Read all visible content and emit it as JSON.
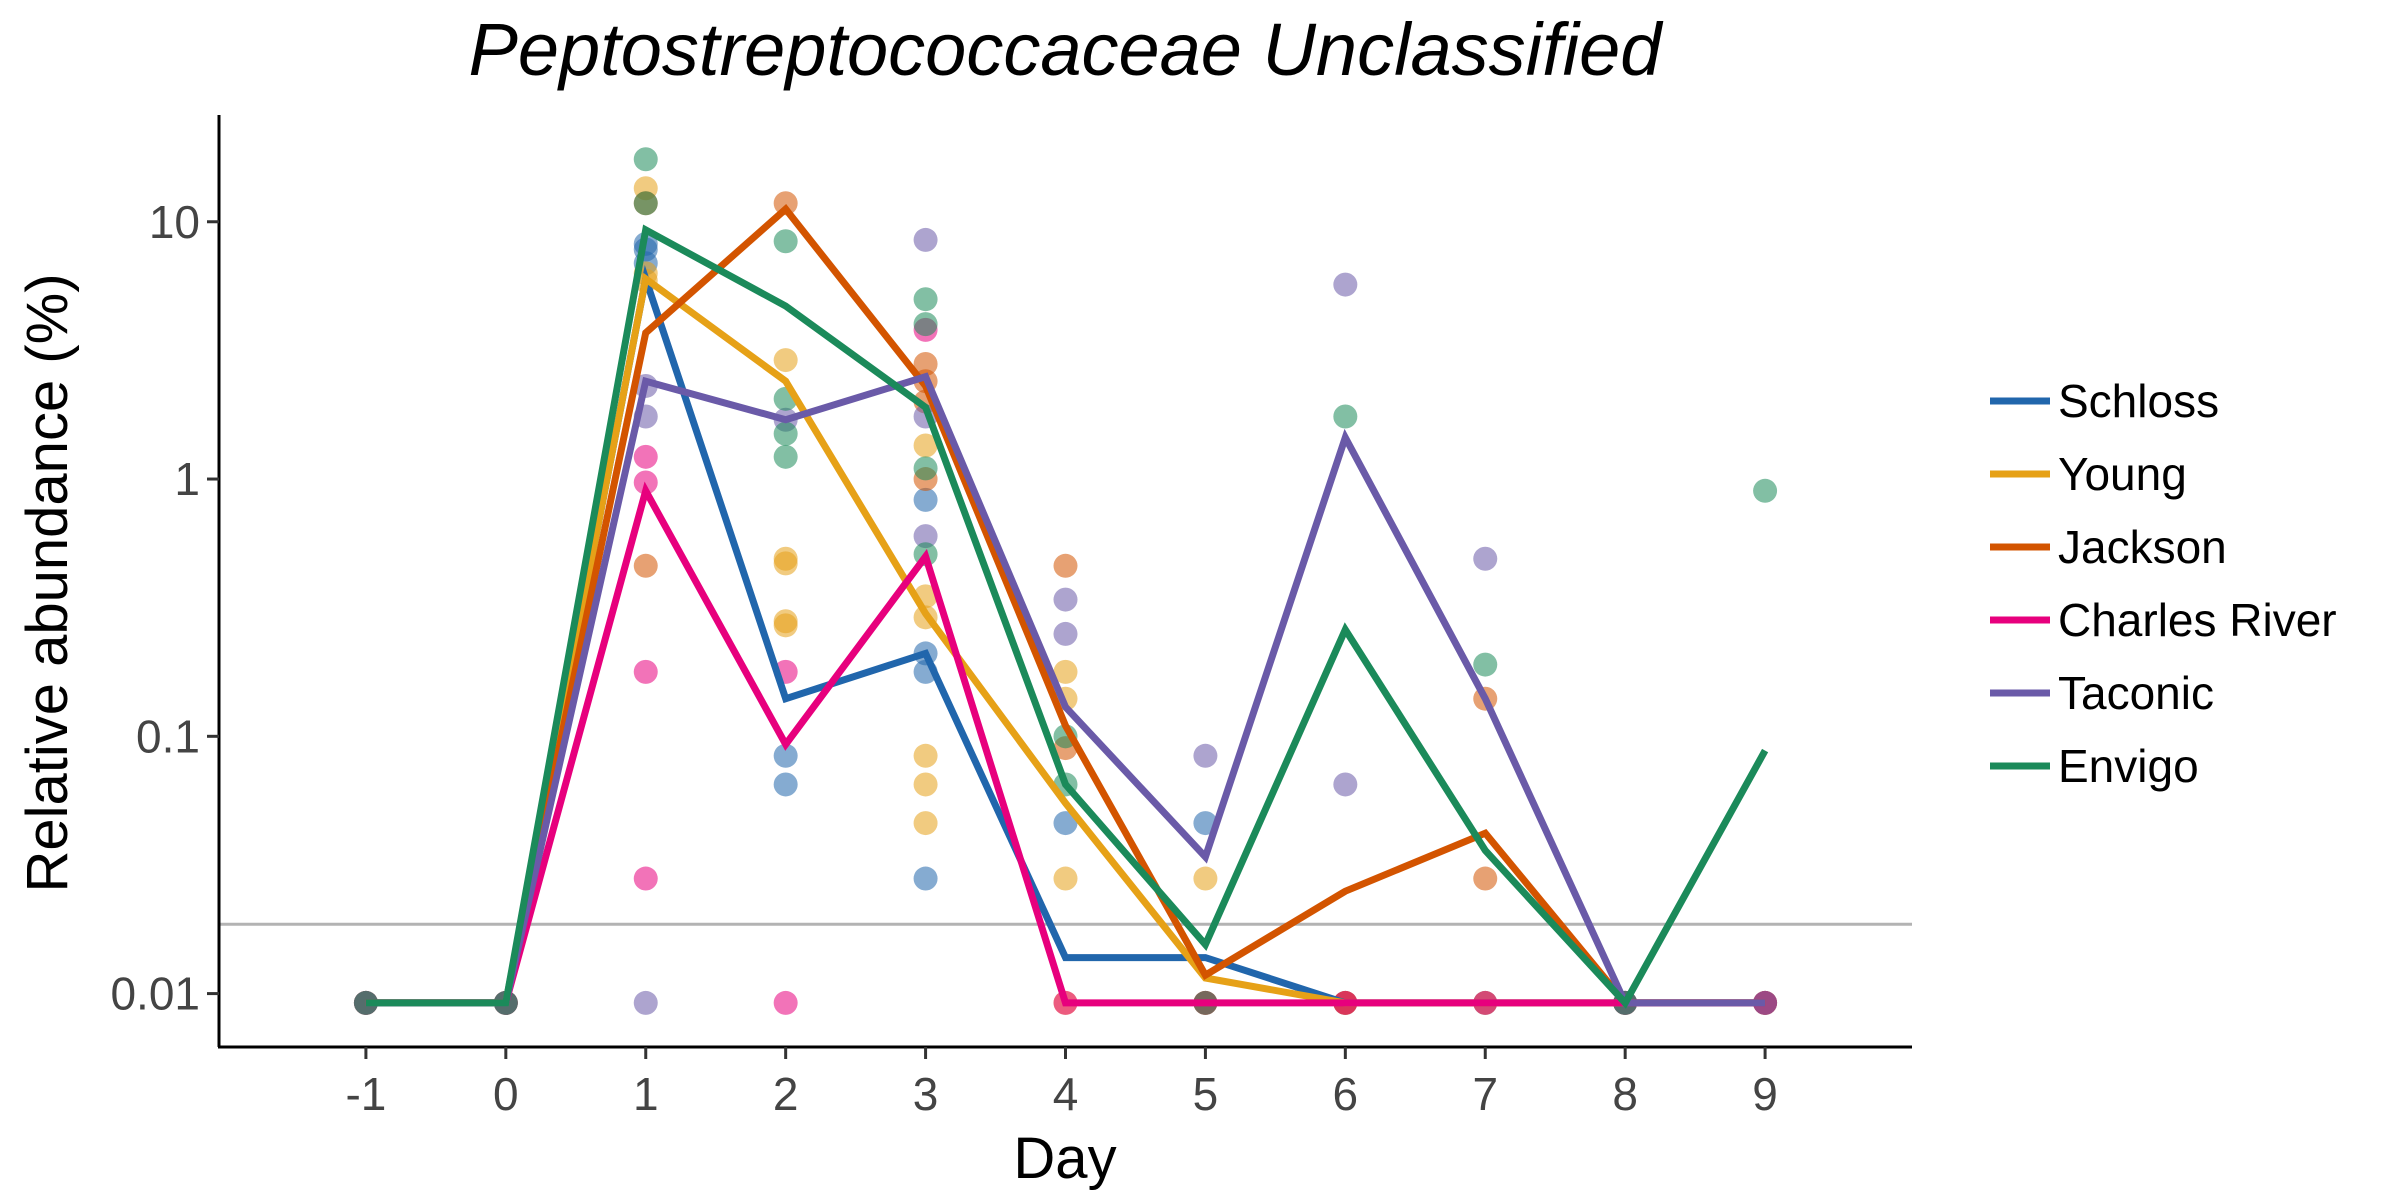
{
  "chart_data": {
    "type": "line",
    "title": "Peptostreptococcaceae Unclassified",
    "xlabel": "Day",
    "ylabel": "Relative abundance (%)",
    "x_ticks": [
      "-1",
      "0",
      "1",
      "2",
      "3",
      "4",
      "5",
      "6",
      "7",
      "8",
      "9"
    ],
    "y_scale": "log",
    "y_ticks": [
      {
        "value": 0.01,
        "label": "0.01"
      },
      {
        "value": 0.1,
        "label": "0.1"
      },
      {
        "value": 1,
        "label": "1"
      },
      {
        "value": 10,
        "label": "10"
      }
    ],
    "ylim": [
      0.0062,
      26
    ],
    "xlim": [
      -2.05,
      10.05
    ],
    "limit_of_detection": 0.0186,
    "legend_position": "right",
    "grid": false,
    "series": [
      {
        "name": "Schloss",
        "color": "#2166ac",
        "median": [
          [
            -1,
            0.0092
          ],
          [
            0,
            0.0092
          ],
          [
            1,
            6.0
          ],
          [
            2,
            0.14
          ],
          [
            3,
            0.21
          ],
          [
            4,
            0.0138
          ],
          [
            5,
            0.0138
          ],
          [
            6,
            0.0092
          ],
          [
            7,
            0.0092
          ],
          [
            8,
            0.0092
          ],
          [
            9,
            0.0092
          ]
        ],
        "points": [
          [
            -1,
            0.0092
          ],
          [
            0,
            0.0092
          ],
          [
            1,
            8.2
          ],
          [
            1,
            7.8
          ],
          [
            1,
            6.9
          ],
          [
            2,
            0.084
          ],
          [
            2,
            0.065
          ],
          [
            3,
            0.83
          ],
          [
            3,
            0.21
          ],
          [
            3,
            0.178
          ],
          [
            3,
            0.028
          ],
          [
            4,
            0.046
          ],
          [
            5,
            0.046
          ],
          [
            6,
            0.0092
          ],
          [
            7,
            0.0092
          ],
          [
            8,
            0.0092
          ],
          [
            9,
            0.0092
          ]
        ]
      },
      {
        "name": "Young",
        "color": "#e6a117",
        "median": [
          [
            -1,
            0.0092
          ],
          [
            0,
            0.0092
          ],
          [
            1,
            6.0
          ],
          [
            2,
            2.4
          ],
          [
            3,
            0.3
          ],
          [
            4,
            0.055
          ],
          [
            5,
            0.0115
          ],
          [
            6,
            0.0092
          ],
          [
            7,
            0.0092
          ],
          [
            8,
            0.0092
          ],
          [
            9,
            0.0092
          ]
        ],
        "points": [
          [
            -1,
            0.0092
          ],
          [
            0,
            0.0092
          ],
          [
            1,
            13.5
          ],
          [
            1,
            6.3
          ],
          [
            1,
            5.9
          ],
          [
            2,
            2.9
          ],
          [
            2,
            0.49
          ],
          [
            2,
            0.47
          ],
          [
            2,
            0.28
          ],
          [
            2,
            0.27
          ],
          [
            3,
            1.35
          ],
          [
            3,
            0.35
          ],
          [
            3,
            0.29
          ],
          [
            3,
            0.084
          ],
          [
            3,
            0.065
          ],
          [
            3,
            0.046
          ],
          [
            4,
            0.178
          ],
          [
            4,
            0.14
          ],
          [
            4,
            0.028
          ],
          [
            4,
            0.0092
          ],
          [
            5,
            0.028
          ],
          [
            5,
            0.0092
          ],
          [
            6,
            0.0092
          ],
          [
            7,
            0.0092
          ],
          [
            8,
            0.0092
          ],
          [
            9,
            0.0092
          ]
        ]
      },
      {
        "name": "Jackson",
        "color": "#d35400",
        "median": [
          [
            -1,
            0.0092
          ],
          [
            0,
            0.0092
          ],
          [
            1,
            3.7
          ],
          [
            2,
            11.2
          ],
          [
            3,
            2.3
          ],
          [
            4,
            0.11
          ],
          [
            5,
            0.0118
          ],
          [
            6,
            0.025
          ],
          [
            7,
            0.042
          ],
          [
            8,
            0.0092
          ],
          [
            9,
            0.0092
          ]
        ],
        "points": [
          [
            -1,
            0.0092
          ],
          [
            0,
            0.0092
          ],
          [
            1,
            11.8
          ],
          [
            1,
            0.46
          ],
          [
            2,
            11.8
          ],
          [
            3,
            2.8
          ],
          [
            3,
            2.4
          ],
          [
            3,
            2.0
          ],
          [
            3,
            1.0
          ],
          [
            4,
            0.46
          ],
          [
            4,
            0.09
          ],
          [
            5,
            0.0092
          ],
          [
            6,
            0.0092
          ],
          [
            7,
            0.14
          ],
          [
            7,
            0.028
          ],
          [
            8,
            0.0092
          ],
          [
            9,
            0.0092
          ]
        ]
      },
      {
        "name": "Charles River",
        "color": "#e7007d",
        "median": [
          [
            -1,
            0.0092
          ],
          [
            0,
            0.0092
          ],
          [
            1,
            0.9
          ],
          [
            2,
            0.093
          ],
          [
            3,
            0.5
          ],
          [
            4,
            0.0092
          ],
          [
            5,
            0.0092
          ],
          [
            6,
            0.0092
          ],
          [
            7,
            0.0092
          ],
          [
            8,
            0.0092
          ],
          [
            9,
            0.0092
          ]
        ],
        "points": [
          [
            -1,
            0.0092
          ],
          [
            0,
            0.0092
          ],
          [
            1,
            1.22
          ],
          [
            1,
            0.97
          ],
          [
            1,
            0.178
          ],
          [
            1,
            0.028
          ],
          [
            2,
            0.178
          ],
          [
            2,
            0.0092
          ],
          [
            3,
            3.8
          ],
          [
            4,
            0.0092
          ],
          [
            5,
            0.0092
          ],
          [
            6,
            0.0092
          ],
          [
            7,
            0.0092
          ],
          [
            8,
            0.0092
          ],
          [
            9,
            0.0092
          ]
        ]
      },
      {
        "name": "Taconic",
        "color": "#6a5aa8",
        "median": [
          [
            -1,
            0.0092
          ],
          [
            0,
            0.0092
          ],
          [
            1,
            2.4
          ],
          [
            2,
            1.7
          ],
          [
            3,
            2.5
          ],
          [
            4,
            0.13
          ],
          [
            5,
            0.034
          ],
          [
            6,
            1.45
          ],
          [
            7,
            0.14
          ],
          [
            8,
            0.0092
          ],
          [
            9,
            0.0092
          ]
        ],
        "points": [
          [
            -1,
            0.0092
          ],
          [
            0,
            0.0092
          ],
          [
            1,
            2.3
          ],
          [
            1,
            1.75
          ],
          [
            1,
            0.0092
          ],
          [
            2,
            1.7
          ],
          [
            3,
            8.5
          ],
          [
            3,
            1.75
          ],
          [
            3,
            0.6
          ],
          [
            4,
            0.34
          ],
          [
            4,
            0.25
          ],
          [
            5,
            0.084
          ],
          [
            6,
            5.7
          ],
          [
            6,
            0.065
          ],
          [
            7,
            0.49
          ],
          [
            8,
            0.0092
          ],
          [
            9,
            0.0092
          ]
        ]
      },
      {
        "name": "Envigo",
        "color": "#1b8a5a",
        "median": [
          [
            -1,
            0.0092
          ],
          [
            0,
            0.0092
          ],
          [
            1,
            9.3
          ],
          [
            2,
            4.7
          ],
          [
            3,
            1.9
          ],
          [
            4,
            0.065
          ],
          [
            5,
            0.0155
          ],
          [
            6,
            0.26
          ],
          [
            7,
            0.036
          ],
          [
            8,
            0.0092
          ],
          [
            9,
            0.088
          ]
        ],
        "points": [
          [
            -1,
            0.0092
          ],
          [
            0,
            0.0092
          ],
          [
            1,
            17.5
          ],
          [
            1,
            11.8
          ],
          [
            2,
            8.4
          ],
          [
            2,
            2.05
          ],
          [
            2,
            1.5
          ],
          [
            2,
            1.22
          ],
          [
            3,
            5.0
          ],
          [
            3,
            4.0
          ],
          [
            3,
            1.1
          ],
          [
            3,
            0.51
          ],
          [
            4,
            0.1
          ],
          [
            4,
            0.065
          ],
          [
            5,
            0.0092
          ],
          [
            6,
            1.75
          ],
          [
            7,
            0.19
          ],
          [
            8,
            0.0092
          ],
          [
            9,
            0.9
          ]
        ]
      }
    ]
  }
}
